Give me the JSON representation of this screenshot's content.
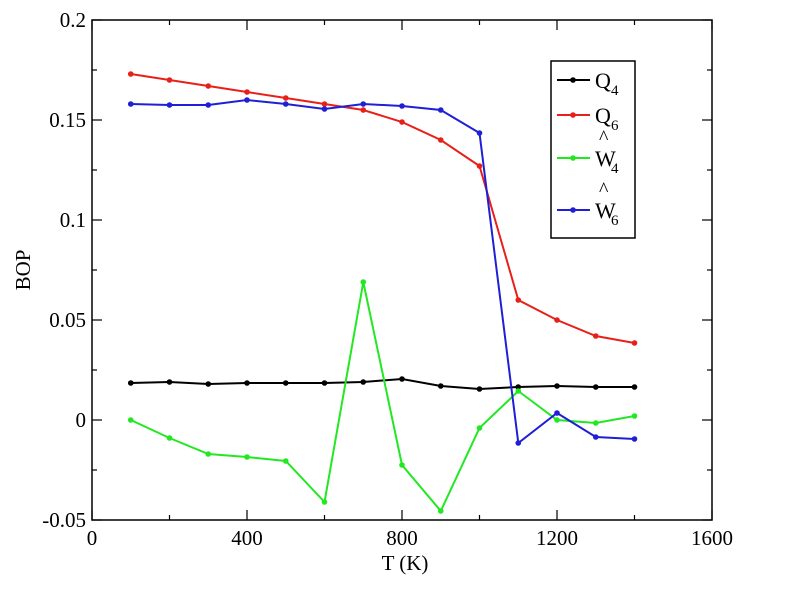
{
  "chart_data": {
    "type": "line",
    "xlabel": "T (K)",
    "ylabel": "BOP",
    "xlim": [
      0,
      1600
    ],
    "ylim": [
      -0.05,
      0.2
    ],
    "x_ticks": [
      "0",
      "400",
      "800",
      "1200",
      "1600"
    ],
    "y_ticks": [
      "-0.05",
      "0",
      "0.05",
      "0.1",
      "0.15",
      "0.2"
    ],
    "x_tick_values": [
      0,
      400,
      800,
      1200,
      1600
    ],
    "y_tick_values": [
      -0.05,
      0,
      0.05,
      0.1,
      0.15,
      0.2
    ],
    "x_minor_step": 200,
    "y_minor_step": 0.025,
    "legend_position": "top-right",
    "x": [
      100,
      200,
      300,
      400,
      500,
      600,
      700,
      800,
      900,
      1000,
      1100,
      1200,
      1300,
      1400
    ],
    "series": [
      {
        "name": "Q",
        "sub": "4",
        "hat": false,
        "color": "#000000",
        "values": [
          0.0185,
          0.019,
          0.018,
          0.0185,
          0.0185,
          0.0185,
          0.019,
          0.0205,
          0.017,
          0.0155,
          0.0165,
          0.017,
          0.0165,
          0.0165
        ]
      },
      {
        "name": "Q",
        "sub": "6",
        "hat": false,
        "color": "#e8201a",
        "values": [
          0.173,
          0.17,
          0.167,
          0.164,
          0.161,
          0.158,
          0.155,
          0.149,
          0.14,
          0.127,
          0.06,
          0.05,
          0.042,
          0.0385
        ]
      },
      {
        "name": "W",
        "sub": "4",
        "hat": true,
        "color": "#22e822",
        "values": [
          0.0,
          -0.009,
          -0.017,
          -0.0185,
          -0.0205,
          -0.041,
          0.069,
          -0.0225,
          -0.0455,
          -0.004,
          0.0145,
          0.0,
          -0.0015,
          0.002
        ]
      },
      {
        "name": "W",
        "sub": "6",
        "hat": true,
        "color": "#1f1fd6",
        "values": [
          0.158,
          0.1575,
          0.1575,
          0.16,
          0.158,
          0.1555,
          0.158,
          0.157,
          0.155,
          0.1435,
          -0.0115,
          0.0035,
          -0.0085,
          -0.0095
        ]
      }
    ]
  }
}
